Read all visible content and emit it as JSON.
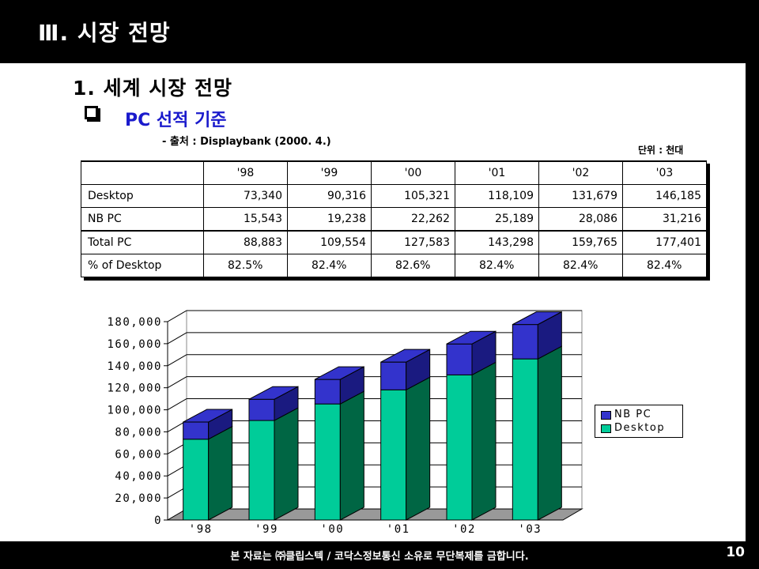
{
  "header": {
    "title": "Ⅲ. 시장 전망"
  },
  "section": {
    "title": "1. 세계 시장 전망",
    "subtitle": "PC 선적 기준",
    "source": "- 출처 : Displaybank (2000. 4.)",
    "unit": "단위 : 천대"
  },
  "table": {
    "columns": [
      "",
      "'98",
      "'99",
      "'00",
      "'01",
      "'02",
      "'03"
    ],
    "rows": [
      {
        "label": "Desktop",
        "values": [
          "73,340",
          "90,316",
          "105,321",
          "118,109",
          "131,679",
          "146,185"
        ]
      },
      {
        "label": "NB  PC",
        "values": [
          "15,543",
          "19,238",
          "22,262",
          "25,189",
          "28,086",
          "31,216"
        ]
      },
      {
        "label": "Total  PC",
        "values": [
          "88,883",
          "109,554",
          "127,583",
          "143,298",
          "159,765",
          "177,401"
        ]
      },
      {
        "label": "%  of  Desktop",
        "values": [
          "82.5%",
          "82.4%",
          "82.6%",
          "82.4%",
          "82.4%",
          "82.4%"
        ]
      }
    ]
  },
  "chart_data": {
    "type": "bar",
    "stacked": true,
    "categories": [
      "'98",
      "'99",
      "'00",
      "'01",
      "'02",
      "'03"
    ],
    "series": [
      {
        "name": "Desktop",
        "values": [
          73340,
          90316,
          105321,
          118109,
          131679,
          146185
        ],
        "color": "#00cc99"
      },
      {
        "name": "NB PC",
        "values": [
          15543,
          19238,
          22262,
          25189,
          28086,
          31216
        ],
        "color": "#3333cc"
      }
    ],
    "ylim": [
      0,
      180000
    ],
    "yticks": [
      "0",
      "20,000",
      "40,000",
      "60,000",
      "80,000",
      "100,000",
      "120,000",
      "140,000",
      "160,000",
      "180,000"
    ],
    "grid": true,
    "legend": "right",
    "legend_labels": [
      "NB PC",
      "Desktop"
    ]
  },
  "footer": {
    "copyright": "본 자료는 ㈜클립스텍 / 코닥스정보통신 소유로 무단복제를 금합니다.",
    "page": "10"
  }
}
